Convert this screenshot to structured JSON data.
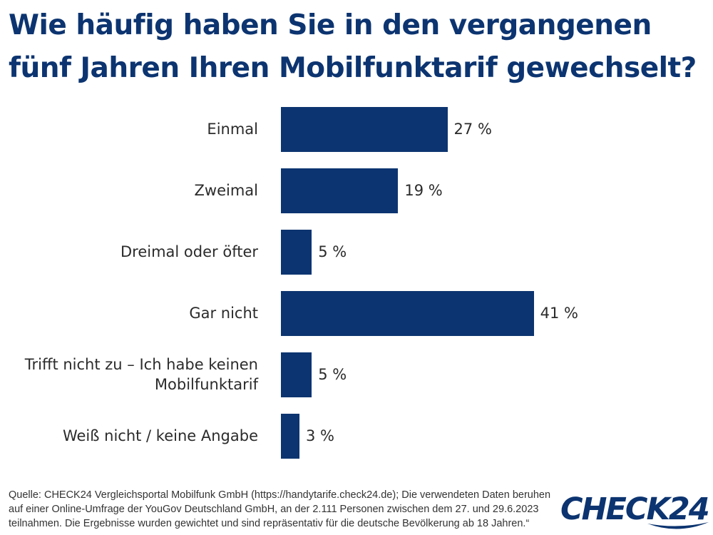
{
  "title": "Wie häufig haben Sie in den vergangenen fünf Jahren Ihren Mobilfunktarif gewechselt?",
  "colors": {
    "bar": "#0c3470",
    "title": "#0c3470",
    "logo": "#0c3470"
  },
  "chart_data": {
    "type": "bar",
    "orientation": "horizontal",
    "title": "Wie häufig haben Sie in den vergangenen fünf Jahren Ihren Mobilfunktarif gewechselt?",
    "categories": [
      "Einmal",
      "Zweimal",
      "Dreimal oder öfter",
      "Gar nicht",
      "Trifft nicht zu – Ich habe keinen Mobilfunktarif",
      "Weiß nicht / keine Angabe"
    ],
    "values": [
      27,
      19,
      5,
      41,
      5,
      3
    ],
    "value_labels": [
      "27 %",
      "19 %",
      "5 %",
      "41 %",
      "5 %",
      "3 %"
    ],
    "unit": "%",
    "xlim": [
      0,
      42
    ],
    "grid": false,
    "legend": "none"
  },
  "source": "Quelle: CHECK24 Vergleichsportal Mobilfunk GmbH (https://handytarife.check24.de); Die verwendeten Daten beruhen auf einer Online-Umfrage der YouGov Deutschland GmbH, an der 2.111 Personen zwischen dem 27. und 29.6.2023 teilnahmen. Die Ergebnisse wurden gewichtet und sind repräsentativ für die deutsche Bevölkerung ab 18 Jahren.“",
  "logo": {
    "text": "CHECK24"
  }
}
